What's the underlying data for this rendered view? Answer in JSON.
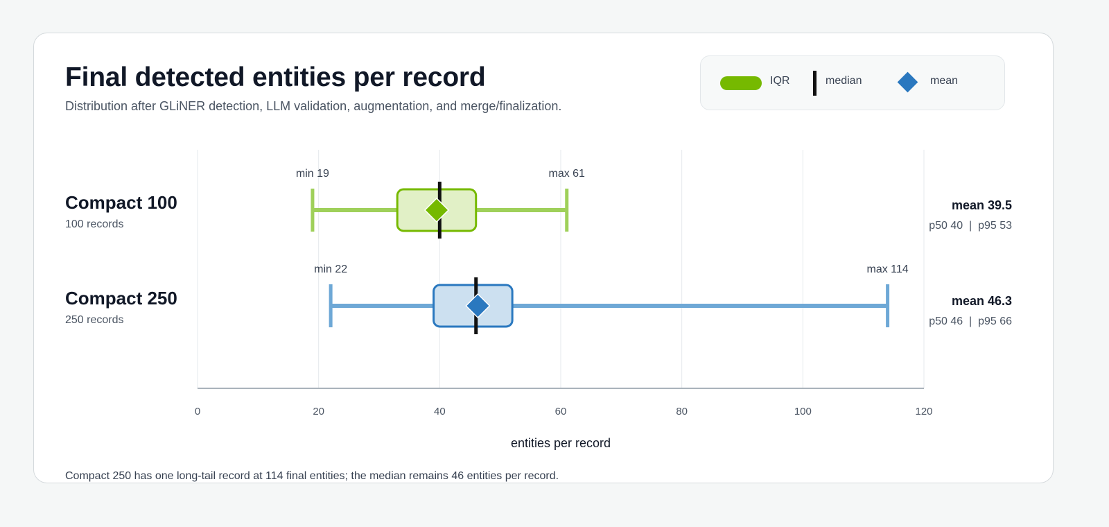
{
  "title": "Final detected entities per record",
  "subtitle": "Distribution after GLiNER detection, LLM validation, augmentation, and merge/finalization.",
  "legend": {
    "iqr": "IQR",
    "median": "median",
    "mean": "mean"
  },
  "footnote": "Compact 250 has one long-tail record at 114 final entities; the median remains 46 entities per record.",
  "colors": {
    "green": "#76b900",
    "green_light": "#9fd05a",
    "green_fill": "#e1f0c6",
    "blue": "#2a78bf",
    "blue_light": "#6ea8d6",
    "blue_fill": "#cce0f0",
    "median": "#111111"
  },
  "chart_data": {
    "type": "box",
    "xlabel": "entities per record",
    "xlim": [
      0,
      120
    ],
    "xticks": [
      0,
      20,
      40,
      60,
      80,
      100,
      120
    ],
    "grid": true,
    "legend_position": "top-right",
    "series": [
      {
        "name": "Compact 100",
        "sublabel": "100 records",
        "min": 19,
        "q1": 33,
        "median": 40,
        "q3": 46,
        "max": 61,
        "mean": 39.5,
        "p50": 40,
        "p95": 53,
        "min_label": "min 19",
        "max_label": "max 61",
        "mean_label": "mean 39.5",
        "pct_label": "p50 40  |  p95 53",
        "color": "green"
      },
      {
        "name": "Compact 250",
        "sublabel": "250 records",
        "min": 22,
        "q1": 39,
        "median": 46,
        "q3": 52,
        "max": 114,
        "mean": 46.3,
        "p50": 46,
        "p95": 66,
        "min_label": "min 22",
        "max_label": "max 114",
        "mean_label": "mean 46.3",
        "pct_label": "p50 46  |  p95 66",
        "color": "blue"
      }
    ]
  }
}
